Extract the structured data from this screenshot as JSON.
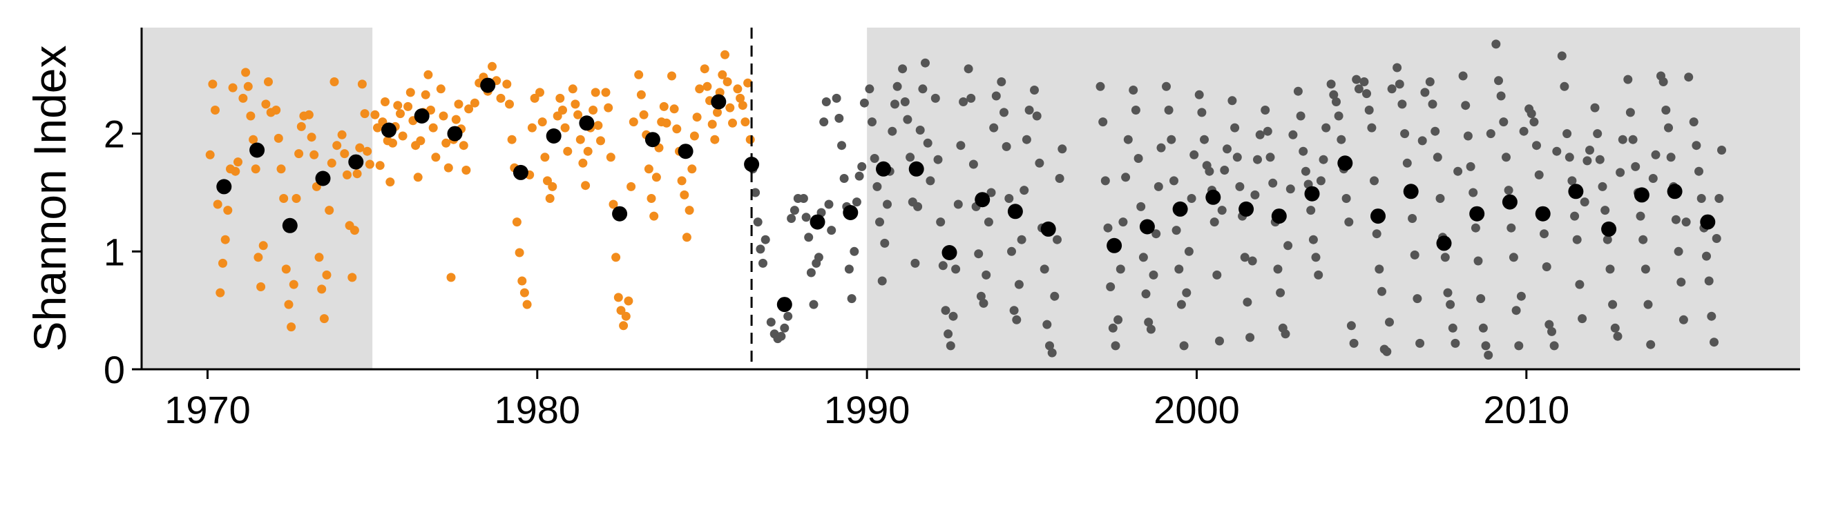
{
  "chart_data": {
    "type": "scatter",
    "title": "",
    "xlabel": "",
    "ylabel": "Shannon Index",
    "xlim": [
      1968.0,
      2018.3
    ],
    "ylim": [
      0,
      2.9
    ],
    "x_ticks": [
      1970,
      1980,
      1990,
      2000,
      2010
    ],
    "x_tick_labels": [
      "1970",
      "1980",
      "1990",
      "2000",
      "2010"
    ],
    "y_ticks": [
      0,
      1,
      2
    ],
    "y_tick_labels": [
      "0",
      "1",
      "2"
    ],
    "grid": false,
    "legend": "none",
    "shaded_periods": [
      [
        1968.0,
        1975.0
      ],
      [
        1990.0,
        2018.3
      ]
    ],
    "vline": {
      "x": 1986.5,
      "style": "dashed"
    },
    "colors": {
      "early_points": "#F28C1C",
      "late_points": "#555555",
      "annual_means": "#000000",
      "shade": "#DEDEDE",
      "vline": "#000000"
    },
    "annual_means": [
      {
        "x": 1970.5,
        "y": 1.55
      },
      {
        "x": 1971.5,
        "y": 1.86
      },
      {
        "x": 1972.5,
        "y": 1.22
      },
      {
        "x": 1973.5,
        "y": 1.62
      },
      {
        "x": 1974.5,
        "y": 1.76
      },
      {
        "x": 1975.5,
        "y": 2.03
      },
      {
        "x": 1976.5,
        "y": 2.15
      },
      {
        "x": 1977.5,
        "y": 2.0
      },
      {
        "x": 1978.5,
        "y": 2.41
      },
      {
        "x": 1979.5,
        "y": 1.67
      },
      {
        "x": 1980.5,
        "y": 1.98
      },
      {
        "x": 1981.5,
        "y": 2.09
      },
      {
        "x": 1982.5,
        "y": 1.32
      },
      {
        "x": 1983.5,
        "y": 1.95
      },
      {
        "x": 1984.5,
        "y": 1.85
      },
      {
        "x": 1985.5,
        "y": 2.27
      },
      {
        "x": 1986.5,
        "y": 1.74
      },
      {
        "x": 1987.5,
        "y": 0.55
      },
      {
        "x": 1988.5,
        "y": 1.25
      },
      {
        "x": 1989.5,
        "y": 1.33
      },
      {
        "x": 1990.5,
        "y": 1.7
      },
      {
        "x": 1991.5,
        "y": 1.7
      },
      {
        "x": 1992.5,
        "y": 0.99
      },
      {
        "x": 1993.5,
        "y": 1.44
      },
      {
        "x": 1994.5,
        "y": 1.34
      },
      {
        "x": 1995.5,
        "y": 1.19
      },
      {
        "x": 1997.5,
        "y": 1.05
      },
      {
        "x": 1998.5,
        "y": 1.21
      },
      {
        "x": 1999.5,
        "y": 1.36
      },
      {
        "x": 2000.5,
        "y": 1.46
      },
      {
        "x": 2001.5,
        "y": 1.36
      },
      {
        "x": 2002.5,
        "y": 1.3
      },
      {
        "x": 2003.5,
        "y": 1.49
      },
      {
        "x": 2004.5,
        "y": 1.75
      },
      {
        "x": 2005.5,
        "y": 1.3
      },
      {
        "x": 2006.5,
        "y": 1.51
      },
      {
        "x": 2007.5,
        "y": 1.07
      },
      {
        "x": 2008.5,
        "y": 1.32
      },
      {
        "x": 2009.5,
        "y": 1.42
      },
      {
        "x": 2010.5,
        "y": 1.32
      },
      {
        "x": 2011.5,
        "y": 1.51
      },
      {
        "x": 2012.5,
        "y": 1.19
      },
      {
        "x": 2013.5,
        "y": 1.48
      },
      {
        "x": 2014.5,
        "y": 1.51
      },
      {
        "x": 2015.5,
        "y": 1.25
      }
    ],
    "samples": {
      "x_mode": "monthly within each year",
      "years": [
        1970,
        1971,
        1972,
        1973,
        1974,
        1975,
        1976,
        1977,
        1978,
        1979,
        1980,
        1981,
        1982,
        1983,
        1984,
        1985,
        1986,
        1987,
        1988,
        1989,
        1990,
        1991,
        1992,
        1993,
        1994,
        1995,
        1997,
        1998,
        1999,
        2000,
        2001,
        2002,
        2003,
        2004,
        2005,
        2006,
        2007,
        2008,
        2009,
        2010,
        2011,
        2012,
        2013,
        2014,
        2015
      ],
      "y_by_year": [
        [
          1.82,
          2.42,
          2.2,
          1.4,
          0.65,
          0.9,
          1.1,
          1.35,
          1.7,
          2.39,
          1.68,
          1.76
        ],
        [
          2.3,
          2.52,
          2.4,
          2.15,
          1.95,
          1.7,
          0.95,
          0.7,
          1.05,
          2.25,
          2.44,
          2.18
        ],
        [
          2.2,
          1.96,
          1.7,
          1.45,
          0.85,
          0.55,
          0.36,
          0.72,
          1.45,
          1.83,
          2.06,
          2.15
        ],
        [
          2.16,
          1.97,
          1.82,
          1.55,
          0.95,
          0.68,
          0.43,
          0.8,
          1.35,
          1.75,
          2.44,
          1.9
        ],
        [
          1.99,
          1.83,
          1.65,
          1.22,
          0.78,
          1.18,
          1.66,
          1.88,
          2.42,
          2.17,
          1.85,
          1.74
        ],
        [
          2.16,
          2.05,
          1.73,
          2.1,
          2.27,
          1.94,
          1.59,
          1.92,
          2.06,
          2.24,
          2.17,
          1.98
        ],
        [
          2.23,
          2.35,
          2.11,
          1.9,
          1.63,
          1.94,
          2.18,
          2.33,
          2.5,
          2.2,
          2.05,
          1.8
        ],
        [
          2.38,
          2.15,
          1.92,
          1.71,
          0.78,
          1.95,
          2.12,
          2.25,
          2.04,
          1.9,
          1.69,
          2.21
        ],
        [
          2.26,
          2.43,
          2.48,
          2.36,
          2.57,
          2.45,
          2.3
        ],
        [
          2.42,
          2.25,
          1.95,
          1.71,
          1.25,
          0.99,
          0.75,
          0.65,
          0.55,
          1.65,
          2.05,
          2.3
        ],
        [
          2.35,
          2.1,
          1.8,
          1.6,
          1.45,
          1.55,
          1.96,
          2.15,
          2.3,
          2.2,
          2.05,
          1.85
        ],
        [
          2.38,
          2.25,
          2.16,
          1.95,
          1.75,
          1.56,
          1.85,
          2.05,
          2.2,
          2.35,
          2.07,
          1.94
        ],
        [
          2.35,
          2.22,
          1.8,
          1.4,
          0.95,
          0.61,
          0.5,
          0.37,
          0.45,
          0.58,
          1.55,
          2.1
        ],
        [
          2.5,
          2.33,
          2.16,
          1.99,
          1.7,
          1.45,
          1.3,
          1.63,
          1.88,
          2.1,
          2.23,
          2.09
        ],
        [
          2.49,
          2.21,
          2.04,
          1.85,
          1.6,
          1.48,
          1.12,
          1.35,
          1.7,
          1.98,
          2.14,
          2.38
        ],
        [
          2.55,
          2.4,
          2.28,
          2.08,
          1.95,
          2.18,
          2.35,
          2.5,
          2.67,
          2.44,
          2.22,
          2.09
        ],
        [
          2.38,
          2.3,
          2.24,
          2.1,
          2.43,
          1.95,
          1.7,
          1.5,
          1.25,
          1.02,
          0.9,
          1.1
        ],
        [
          0.4,
          0.3,
          0.26,
          0.28,
          0.35,
          0.45,
          1.28,
          1.35,
          1.45
        ],
        [
          1.45,
          1.29,
          1.12,
          0.82,
          0.55,
          0.9,
          0.95,
          1.33,
          2.1,
          2.27,
          1.4,
          1.18
        ],
        [
          2.3,
          2.13,
          1.9,
          1.62,
          1.38,
          0.85,
          0.6,
          1.0,
          1.42,
          1.64,
          1.72,
          2.26
        ],
        [
          2.38,
          2.1,
          1.79,
          1.55,
          1.25,
          0.75,
          1.07,
          1.4,
          1.68,
          2.02,
          2.25,
          2.4
        ],
        [
          2.55,
          2.27,
          2.12,
          1.8,
          1.42,
          0.9,
          1.38,
          2.03,
          2.38,
          2.6,
          1.92,
          1.6
        ],
        [
          2.3,
          1.78,
          1.25,
          0.88,
          0.5,
          0.3,
          0.2,
          0.45,
          0.85,
          1.4,
          1.9,
          2.27
        ],
        [
          2.55,
          2.3,
          1.74,
          1.38,
          0.98,
          0.62,
          0.56,
          0.8,
          1.25,
          1.5,
          2.05,
          2.32
        ],
        [
          2.44,
          2.18,
          1.89,
          1.45,
          1.0,
          0.5,
          0.42,
          0.72,
          1.1,
          1.52,
          1.95,
          2.2
        ],
        [
          2.37,
          2.15,
          1.75,
          1.2,
          0.85,
          0.38,
          0.2,
          0.14,
          0.62,
          1.1,
          1.62,
          1.87
        ],
        [
          2.4,
          2.1,
          1.6,
          1.2,
          0.7,
          0.35,
          0.2,
          0.42,
          0.85,
          1.25,
          1.63,
          1.95
        ],
        [
          2.37,
          2.2,
          1.79,
          1.38,
          0.95,
          0.64,
          0.4,
          0.34,
          0.8,
          1.15,
          1.55,
          1.88
        ],
        [
          2.4,
          2.2,
          1.95,
          1.6,
          1.18,
          0.85,
          0.55,
          0.2,
          0.65,
          1.0,
          1.45,
          1.82
        ],
        [
          2.33,
          2.18,
          1.95,
          1.73,
          1.68,
          1.52,
          1.25,
          0.8,
          0.24,
          1.35,
          1.69,
          1.87
        ],
        [
          2.28,
          2.05,
          1.8,
          1.55,
          1.3,
          0.95,
          0.57,
          0.27,
          0.92,
          1.48,
          1.78,
          1.99
        ],
        [
          2.2,
          2.02,
          1.8,
          1.58,
          1.25,
          0.85,
          0.65,
          0.35,
          0.3,
          1.05,
          1.53,
          1.99
        ],
        [
          2.36,
          2.15,
          1.85,
          1.68,
          1.57,
          1.35,
          1.1,
          0.95,
          0.8,
          1.6,
          1.78,
          2.05
        ],
        [
          2.42,
          2.33,
          2.27,
          2.15,
          1.95,
          1.7,
          1.45,
          1.25,
          0.37,
          0.22,
          2.46,
          2.38
        ],
        [
          2.44,
          2.34,
          2.2,
          2.05,
          1.6,
          1.15,
          0.85,
          0.66,
          0.17,
          0.15,
          0.4,
          2.38
        ],
        [
          2.56,
          2.42,
          2.25,
          2.0,
          1.75,
          1.5,
          1.28,
          0.97,
          0.6,
          0.22,
          1.94,
          2.35
        ],
        [
          2.44,
          2.25,
          2.02,
          1.8,
          1.45,
          1.12,
          0.95,
          0.65,
          0.55,
          0.35,
          0.22,
          1.68
        ],
        [
          2.49,
          2.24,
          1.98,
          1.72,
          1.5,
          1.2,
          0.92,
          0.6,
          0.35,
          0.2,
          0.12,
          2.0
        ],
        [
          2.76,
          2.45,
          2.32,
          2.1,
          1.8,
          1.52,
          1.2,
          0.95,
          0.5,
          0.2,
          0.62,
          2.02
        ],
        [
          2.21,
          2.17,
          2.1,
          1.9,
          1.65,
          1.33,
          1.15,
          0.87,
          0.38,
          0.32,
          0.2,
          1.85
        ],
        [
          2.66,
          2.4,
          2.0,
          1.8,
          1.6,
          1.3,
          1.1,
          0.72,
          0.43,
          1.42,
          1.77,
          1.86
        ],
        [
          2.22,
          2.0,
          1.78,
          1.55,
          1.35,
          1.1,
          0.85,
          0.55,
          0.35,
          0.28,
          1.67,
          1.95
        ],
        [
          2.46,
          2.18,
          1.95,
          1.72,
          1.5,
          1.3,
          1.1,
          0.85,
          0.55,
          0.21,
          1.62,
          1.82
        ],
        [
          2.49,
          2.44,
          2.2,
          2.05,
          1.8,
          1.55,
          1.27,
          1.0,
          0.74,
          0.42,
          1.25,
          2.48
        ],
        [
          2.1,
          1.9,
          1.68,
          1.45,
          1.2,
          0.96,
          0.75,
          0.45,
          0.23,
          1.11,
          1.45,
          1.86
        ]
      ]
    }
  }
}
